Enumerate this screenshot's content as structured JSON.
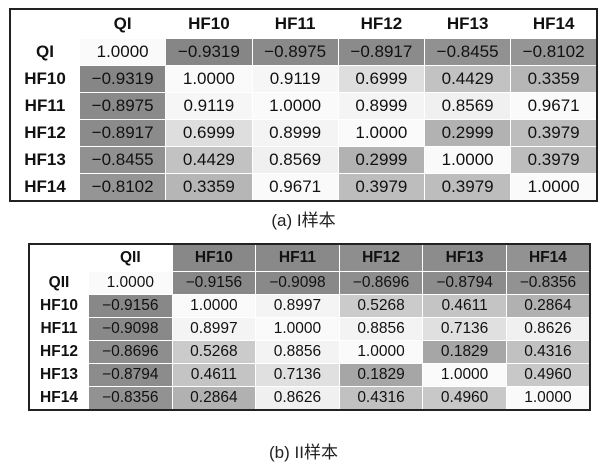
{
  "tables": [
    {
      "columns": [
        "QI",
        "HF10",
        "HF11",
        "HF12",
        "HF13",
        "HF14"
      ],
      "rows": [
        {
          "label": "QI",
          "cells": [
            "1.0000",
            "−0.9319",
            "−0.8975",
            "−0.8917",
            "−0.8455",
            "−0.8102"
          ]
        },
        {
          "label": "HF10",
          "cells": [
            "−0.9319",
            "1.0000",
            "0.9119",
            "0.6999",
            "0.4429",
            "0.3359"
          ]
        },
        {
          "label": "HF11",
          "cells": [
            "−0.8975",
            "0.9119",
            "1.0000",
            "0.8999",
            "0.8569",
            "0.9671"
          ]
        },
        {
          "label": "HF12",
          "cells": [
            "−0.8917",
            "0.6999",
            "0.8999",
            "1.0000",
            "0.2999",
            "0.3979"
          ]
        },
        {
          "label": "HF13",
          "cells": [
            "−0.8455",
            "0.4429",
            "0.8569",
            "0.2999",
            "1.0000",
            "0.3979"
          ]
        },
        {
          "label": "HF14",
          "cells": [
            "−0.8102",
            "0.3359",
            "0.9671",
            "0.3979",
            "0.3979",
            "1.0000"
          ]
        }
      ],
      "caption": "(a) I样本"
    },
    {
      "columns": [
        "QII",
        "HF10",
        "HF11",
        "HF12",
        "HF13",
        "HF14"
      ],
      "rows": [
        {
          "label": "QII",
          "cells": [
            "1.0000",
            "−0.9156",
            "−0.9098",
            "−0.8696",
            "−0.8794",
            "−0.8356"
          ]
        },
        {
          "label": "HF10",
          "cells": [
            "−0.9156",
            "1.0000",
            "0.8997",
            "0.5268",
            "0.4611",
            "0.2864"
          ]
        },
        {
          "label": "HF11",
          "cells": [
            "−0.9098",
            "0.8997",
            "1.0000",
            "0.8856",
            "0.7136",
            "0.8626"
          ]
        },
        {
          "label": "HF12",
          "cells": [
            "−0.8696",
            "0.5268",
            "0.8856",
            "1.0000",
            "0.1829",
            "0.4316"
          ]
        },
        {
          "label": "HF13",
          "cells": [
            "−0.8794",
            "0.4611",
            "0.7136",
            "0.1829",
            "1.0000",
            "0.4960"
          ]
        },
        {
          "label": "HF14",
          "cells": [
            "−0.8356",
            "0.2864",
            "0.8626",
            "0.4316",
            "0.4960",
            "1.0000"
          ]
        }
      ],
      "caption": "(b) II样本"
    }
  ]
}
